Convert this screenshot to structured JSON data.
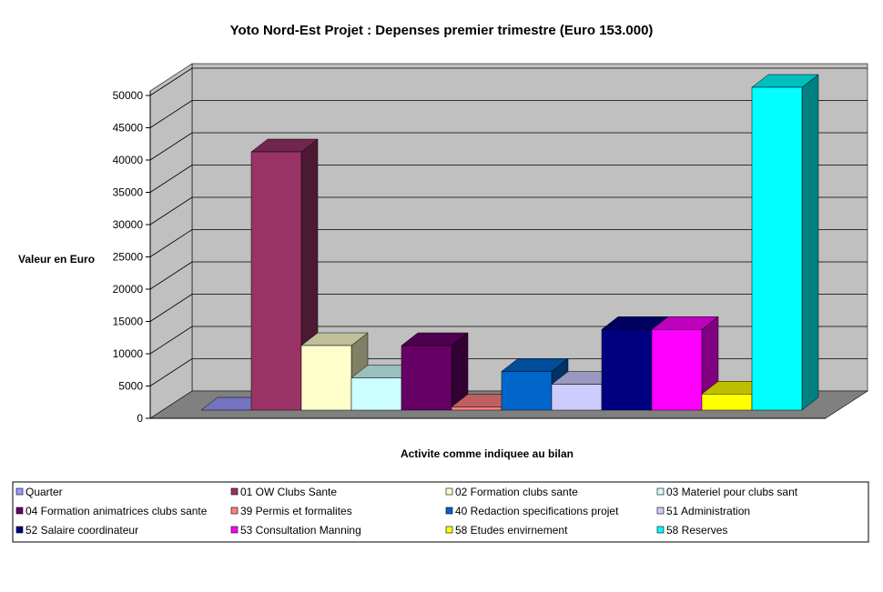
{
  "chart_data": {
    "type": "bar",
    "title": "Yoto Nord-Est Projet : Depenses premier trimestre (Euro 153.000)",
    "xlabel": "Activite comme indiquee au bilan",
    "ylabel": "Valeur en Euro",
    "ylim": [
      0,
      50000
    ],
    "yticks": [
      "0",
      "5000",
      "10000",
      "15000",
      "20000",
      "25000",
      "30000",
      "35000",
      "40000",
      "45000",
      "50000"
    ],
    "grid": true,
    "legend_position": "bottom",
    "series": [
      {
        "name": "Quarter",
        "value": 0,
        "color": "#9999FF"
      },
      {
        "name": "01 OW Clubs Sante",
        "value": 40000,
        "color": "#993366"
      },
      {
        "name": "02 Formation clubs sante",
        "value": 10000,
        "color": "#FFFFCC"
      },
      {
        "name": "03 Materiel pour clubs sant",
        "value": 5000,
        "color": "#CCFFFF"
      },
      {
        "name": "04 Formation animatrices clubs sante",
        "value": 10000,
        "color": "#660066"
      },
      {
        "name": "39 Permis et formalites",
        "value": 500,
        "color": "#FF8080"
      },
      {
        "name": "40 Redaction specifications projet",
        "value": 6000,
        "color": "#0066CC"
      },
      {
        "name": "51 Administration",
        "value": 4000,
        "color": "#CCCCFF"
      },
      {
        "name": "52 Salaire coordinateur",
        "value": 12500,
        "color": "#000080"
      },
      {
        "name": "53 Consultation Manning",
        "value": 12500,
        "color": "#FF00FF"
      },
      {
        "name": "58 Etudes envirnement",
        "value": 2500,
        "color": "#FFFF00"
      },
      {
        "name": "58 Reserves",
        "value": 50000,
        "color": "#00FFFF"
      }
    ]
  }
}
